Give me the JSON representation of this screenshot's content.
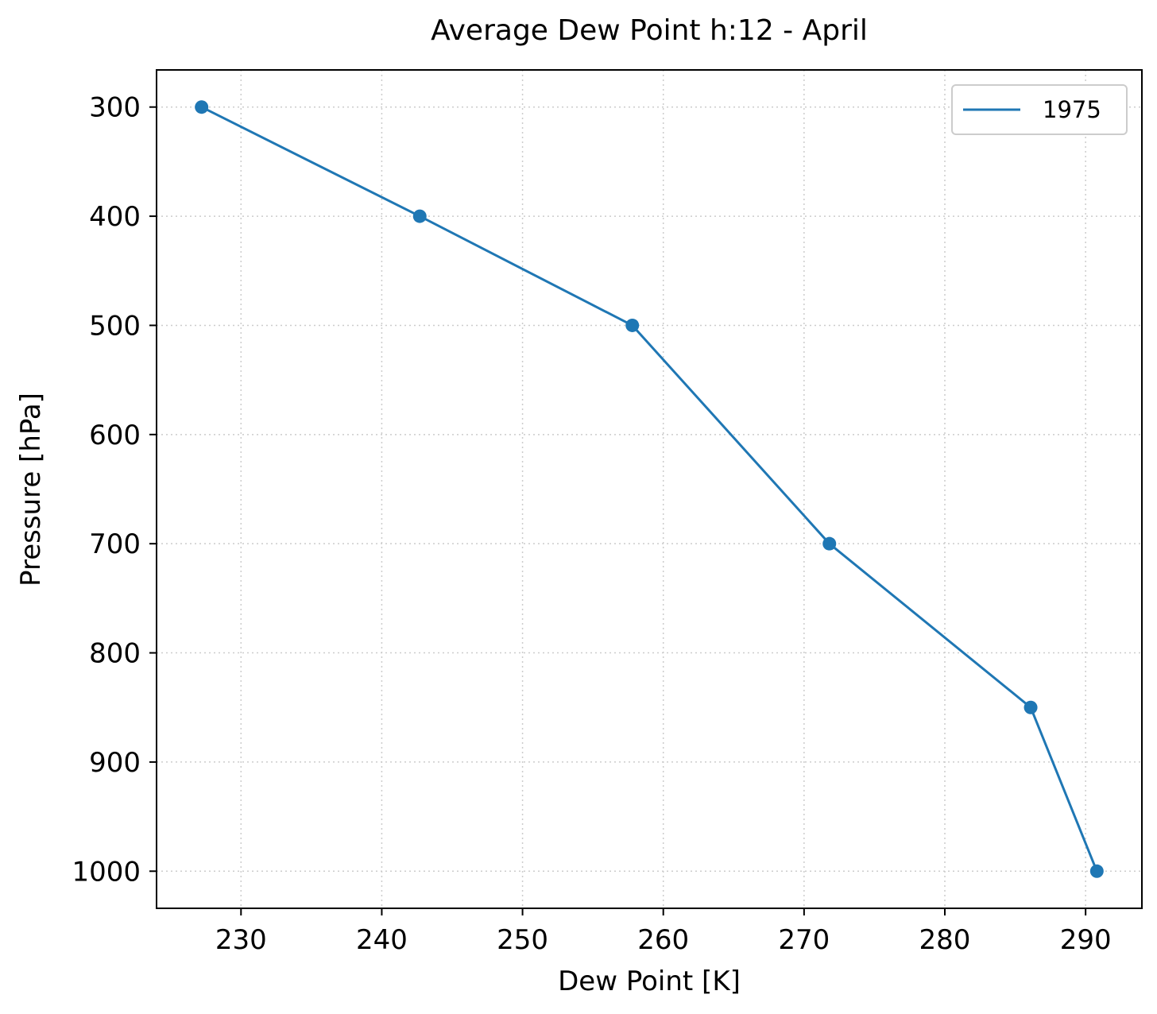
{
  "chart_data": {
    "type": "line",
    "title": "Average Dew Point h:12 - April",
    "xlabel": "Dew Point [K]",
    "ylabel": "Pressure [hPa]",
    "xlim": [
      224,
      294
    ],
    "ylim": [
      1034,
      266
    ],
    "y_inverted": true,
    "xticks": [
      230,
      240,
      250,
      260,
      270,
      280,
      290
    ],
    "yticks": [
      300,
      400,
      500,
      600,
      700,
      800,
      900,
      1000
    ],
    "grid": true,
    "grid_style": "dotted",
    "legend_position": "top-right",
    "series": [
      {
        "name": "1975",
        "color": "#1f77b4",
        "marker": "circle",
        "x": [
          227.2,
          242.7,
          257.8,
          271.8,
          286.1,
          290.8
        ],
        "y": [
          300,
          400,
          500,
          700,
          850,
          1000
        ]
      }
    ]
  }
}
